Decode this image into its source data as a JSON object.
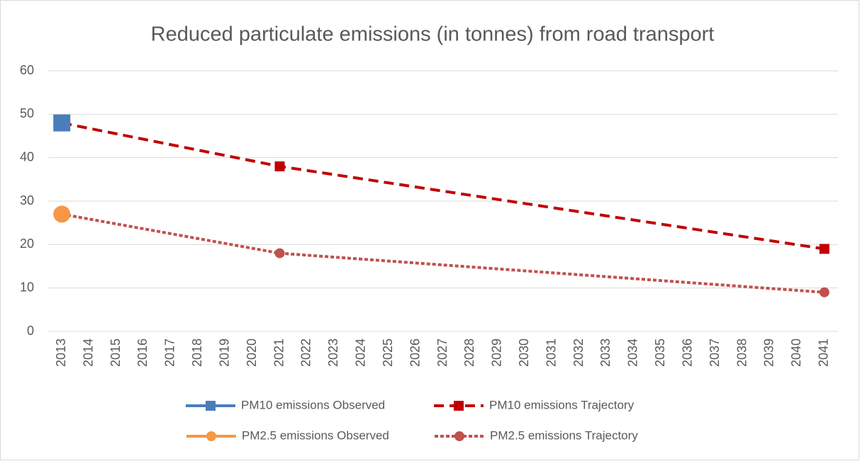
{
  "chart_data": {
    "type": "line",
    "title": "Reduced particulate emissions (in tonnes) from road transport",
    "xlim": [
      2012.5,
      2041.5
    ],
    "xticks": [
      2013,
      2014,
      2015,
      2016,
      2017,
      2018,
      2019,
      2020,
      2021,
      2022,
      2023,
      2024,
      2025,
      2026,
      2027,
      2028,
      2029,
      2030,
      2031,
      2032,
      2033,
      2034,
      2035,
      2036,
      2037,
      2038,
      2039,
      2040,
      2041
    ],
    "ylim": [
      0,
      60
    ],
    "yticks": [
      0,
      10,
      20,
      30,
      40,
      50,
      60
    ],
    "grid": true,
    "legend": "bottom",
    "series": [
      {
        "name": "PM10 emissions Observed",
        "color": "#4a7ebb",
        "line_style": "solid",
        "marker": "square",
        "x": [
          2013
        ],
        "values": [
          48
        ]
      },
      {
        "name": "PM10 emissions Trajectory",
        "color": "#c00000",
        "line_style": "dash",
        "marker": "square",
        "x": [
          2013,
          2021,
          2041
        ],
        "values": [
          48,
          38,
          19
        ]
      },
      {
        "name": "PM2.5 emissions Observed",
        "color": "#f79646",
        "line_style": "solid",
        "marker": "circle",
        "x": [
          2013
        ],
        "values": [
          27
        ]
      },
      {
        "name": "PM2.5 emissions Trajectory",
        "color": "#c0504d",
        "line_style": "dot",
        "marker": "circle",
        "x": [
          2013,
          2021,
          2041
        ],
        "values": [
          27,
          18,
          9
        ]
      }
    ]
  }
}
